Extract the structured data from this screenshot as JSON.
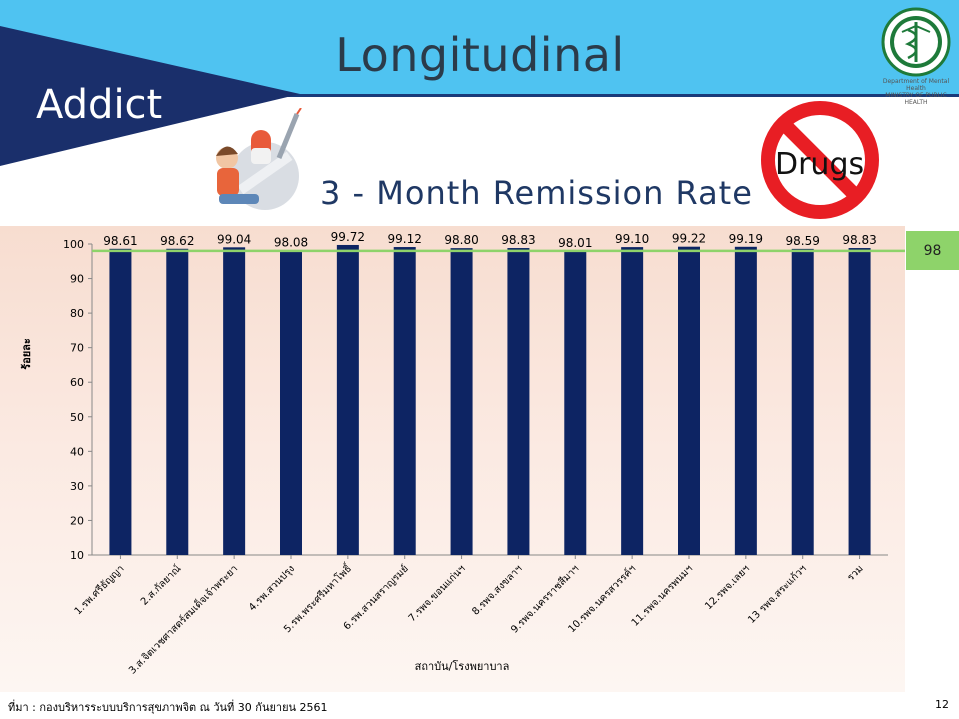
{
  "slide": {
    "title": "Longitudinal",
    "section": "Addict",
    "drugs_sign": "Drugs",
    "source": "ที่มา : กองบริหารระบบบริการสุขภาพจิต ณ วันที่ 30  กันยายน 2561",
    "page_number": "12",
    "logo_text": [
      "Department of Mental Health",
      "MINISTRY OF PUBLIC HEALTH"
    ],
    "colors": {
      "header": "#4fc3f1",
      "addict_band": "#1a2f6b",
      "bar": "#0d2463",
      "reference_line": "#8ed36a"
    }
  },
  "chart_data": {
    "type": "bar",
    "title": "3 - Month Remission Rate",
    "xlabel": "สถาบัน/โรงพยาบาล",
    "ylabel": "ร้อยละ",
    "ylim": [
      10,
      100
    ],
    "yticks": [
      10,
      20,
      30,
      40,
      50,
      60,
      70,
      80,
      90,
      100
    ],
    "categories": [
      "1.รพ.ศรีธัญญา",
      "2.ส.กัลยาณ์",
      "3.ส.จิตเวชศาสตร์สมเด็จเจ้าพระยา",
      "4.รพ.สวนปรุง",
      "5.รพ.พระศรีมหาโพธิ์",
      "6.รพ.สวนสราญรมย์",
      "7.รพจ.ขอนแก่นฯ",
      "8.รพจ.สงขลาฯ",
      "9.รพจ.นครราชสีมาฯ",
      "10.รพจ.นครสวรรค์ฯ",
      "11.รพจ.นครพนมฯ",
      "12.รพจ.เลยฯ",
      "13 รพจ.สระแก้วฯ",
      "รวม"
    ],
    "values": [
      98.61,
      98.62,
      99.04,
      98.08,
      99.72,
      99.12,
      98.8,
      98.83,
      98.01,
      99.1,
      99.22,
      99.19,
      98.59,
      98.83
    ],
    "value_labels": [
      "98.61",
      "98.62",
      "99.04",
      "98.08",
      "99.72",
      "99.12",
      "98.80",
      "98.83",
      "98.01",
      "99.10",
      "99.22",
      "99.19",
      "98.59",
      "98.83"
    ],
    "reference_line": {
      "value": 98,
      "label": "98"
    },
    "grid": false,
    "legend": "none"
  }
}
